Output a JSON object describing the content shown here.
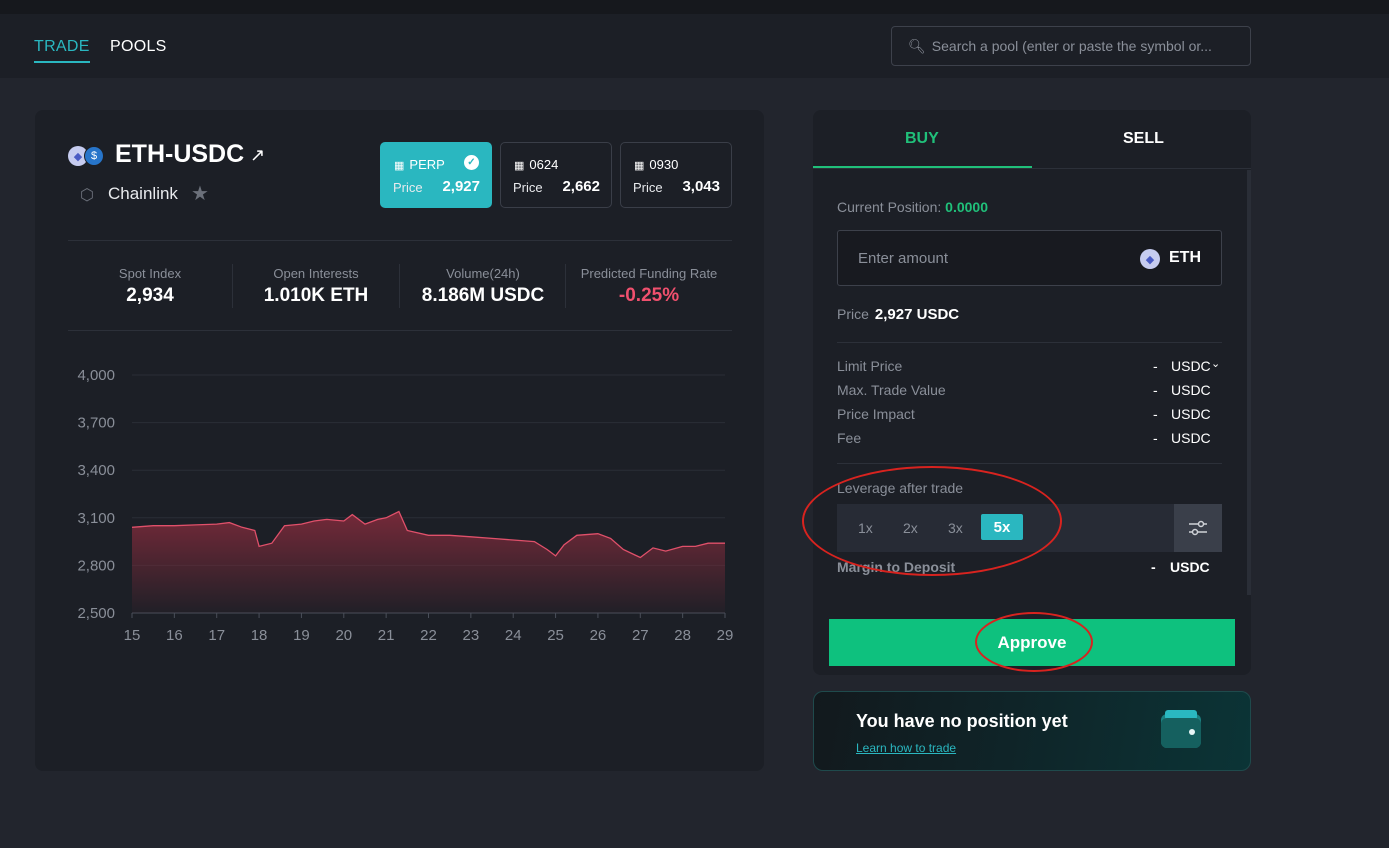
{
  "nav": {
    "tabs": [
      {
        "label": "TRADE",
        "active": true
      },
      {
        "label": "POOLS",
        "active": false
      }
    ],
    "search_placeholder": "Search a pool (enter or paste the symbol or..."
  },
  "market": {
    "pair": "ETH-USDC",
    "oracle": "Chainlink",
    "contracts": [
      {
        "name": "PERP",
        "price_label": "Price",
        "price": "2,927",
        "active": true
      },
      {
        "name": "0624",
        "price_label": "Price",
        "price": "2,662",
        "active": false
      },
      {
        "name": "0930",
        "price_label": "Price",
        "price": "3,043",
        "active": false
      }
    ],
    "stats": [
      {
        "label": "Spot Index",
        "value": "2,934"
      },
      {
        "label": "Open Interests",
        "value": "1.010K ETH"
      },
      {
        "label": "Volume(24h)",
        "value": "8.186M USDC"
      },
      {
        "label": "Predicted Funding Rate",
        "value": "-0.25%",
        "negative": true
      }
    ]
  },
  "chart_data": {
    "type": "area",
    "x": [
      15,
      15.5,
      16,
      16.5,
      17,
      17.3,
      17.6,
      17.9,
      18,
      18.3,
      18.6,
      19,
      19.3,
      19.6,
      20,
      20.2,
      20.5,
      20.8,
      21,
      21.3,
      21.5,
      22,
      22.5,
      23,
      23.5,
      24,
      24.5,
      24.8,
      25,
      25.2,
      25.5,
      26,
      26.3,
      26.6,
      27,
      27.3,
      27.6,
      28,
      28.3,
      28.6,
      29
    ],
    "values": [
      3040,
      3050,
      3050,
      3055,
      3060,
      3070,
      3040,
      3020,
      2920,
      2940,
      3050,
      3060,
      3080,
      3090,
      3080,
      3120,
      3060,
      3090,
      3100,
      3140,
      3020,
      2990,
      2990,
      2980,
      2970,
      2960,
      2950,
      2900,
      2860,
      2930,
      2990,
      3000,
      2970,
      2900,
      2850,
      2910,
      2890,
      2920,
      2920,
      2940,
      2940
    ],
    "xticks": [
      "15",
      "16",
      "17",
      "18",
      "19",
      "20",
      "21",
      "22",
      "23",
      "24",
      "25",
      "26",
      "27",
      "28",
      "29"
    ],
    "yticks": [
      "2,500",
      "2,800",
      "3,100",
      "3,400",
      "3,700",
      "4,000"
    ],
    "ylim": [
      2500,
      4000
    ],
    "xlim": [
      15,
      29
    ],
    "grid": true,
    "line_color": "#e0506a",
    "fill_color": "#7a2a3a"
  },
  "order": {
    "tabs": [
      {
        "label": "BUY",
        "active": true
      },
      {
        "label": "SELL",
        "active": false
      }
    ],
    "current_position_label": "Current Position:",
    "current_position_value": "0.0000",
    "amount_placeholder": "Enter amount",
    "amount_token": "ETH",
    "price_label": "Price",
    "price_value": "2,927 USDC",
    "details": [
      {
        "label": "Limit Price",
        "value": "-",
        "unit": "USDC",
        "dropdown": true
      },
      {
        "label": "Max. Trade Value",
        "value": "-",
        "unit": "USDC"
      },
      {
        "label": "Price Impact",
        "value": "-",
        "unit": "USDC"
      },
      {
        "label": "Fee",
        "value": "-",
        "unit": "USDC"
      }
    ],
    "leverage_label": "Leverage after trade",
    "leverage_options": [
      "1x",
      "2x",
      "3x",
      "5x"
    ],
    "leverage_selected": "5x",
    "margin_label": "Margin to Deposit",
    "margin_value": "-",
    "margin_unit": "USDC",
    "approve_label": "Approve"
  },
  "promo": {
    "title": "You have no position yet",
    "link": "Learn how to trade"
  },
  "colors": {
    "accent": "#2ab7c0",
    "buy": "#20c07a",
    "approve": "#0ec17e",
    "negative": "#f0506e",
    "annotation": "#d8231f"
  }
}
